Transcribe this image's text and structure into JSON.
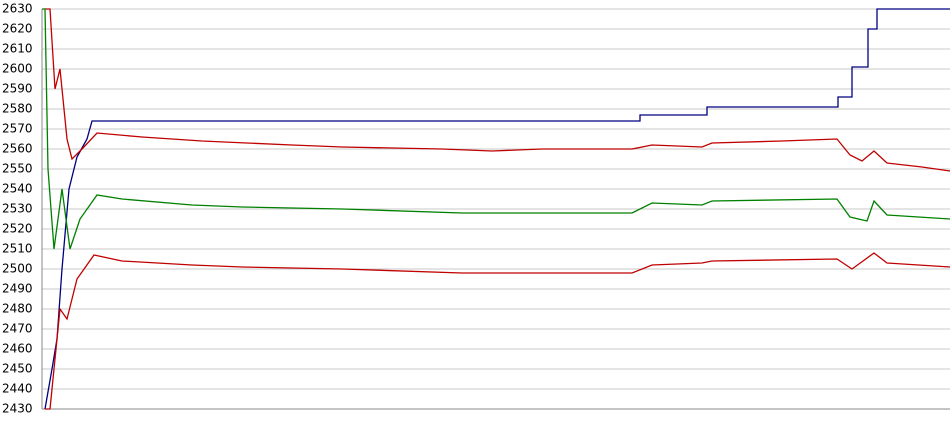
{
  "chart_data": {
    "type": "line",
    "xlim": [
      0,
      908
    ],
    "ylim": [
      2430,
      2630
    ],
    "yticks": [
      2430,
      2440,
      2450,
      2460,
      2470,
      2480,
      2490,
      2500,
      2510,
      2520,
      2530,
      2540,
      2550,
      2560,
      2570,
      2580,
      2590,
      2600,
      2610,
      2620,
      2630
    ],
    "grid": true,
    "series": [
      {
        "color": "#000080",
        "x": [
          3,
          10,
          15,
          20,
          27,
          35,
          45,
          50,
          598,
          598,
          665,
          665,
          796,
          796,
          810,
          810,
          826,
          826,
          835,
          835,
          908
        ],
        "values": [
          2430,
          2450,
          2465,
          2500,
          2540,
          2556,
          2565,
          2574,
          2574,
          2577,
          2577,
          2581,
          2581,
          2586,
          2586,
          2601,
          2601,
          2620,
          2620,
          2630,
          2630
        ]
      },
      {
        "color": "#c00000",
        "x": [
          3,
          8,
          13,
          18,
          25,
          30,
          40,
          55,
          100,
          160,
          250,
          300,
          400,
          450,
          500,
          590,
          610,
          660,
          670,
          740,
          795,
          808,
          820,
          832,
          845,
          880,
          908
        ],
        "values": [
          2630,
          2630,
          2590,
          2600,
          2565,
          2555,
          2560,
          2568,
          2566,
          2564,
          2562,
          2561,
          2560,
          2559,
          2560,
          2560,
          2562,
          2561,
          2563,
          2564,
          2565,
          2557,
          2554,
          2559,
          2553,
          2551,
          2549
        ]
      },
      {
        "color": "#008000",
        "x": [
          0,
          3,
          6,
          12,
          20,
          28,
          38,
          55,
          80,
          150,
          200,
          300,
          420,
          590,
          610,
          660,
          670,
          795,
          808,
          825,
          832,
          845,
          908
        ],
        "values": [
          2630,
          2630,
          2550,
          2510,
          2540,
          2510,
          2525,
          2537,
          2535,
          2532,
          2531,
          2530,
          2528,
          2528,
          2533,
          2532,
          2534,
          2535,
          2526,
          2524,
          2534,
          2527,
          2525
        ]
      },
      {
        "color": "#c00000",
        "x": [
          3,
          8,
          18,
          25,
          35,
          52,
          80,
          150,
          200,
          300,
          420,
          590,
          610,
          660,
          670,
          795,
          810,
          832,
          845,
          908
        ],
        "values": [
          2430,
          2430,
          2480,
          2475,
          2495,
          2507,
          2504,
          2502,
          2501,
          2500,
          2498,
          2498,
          2502,
          2503,
          2504,
          2505,
          2500,
          2508,
          2503,
          2501
        ]
      }
    ]
  }
}
